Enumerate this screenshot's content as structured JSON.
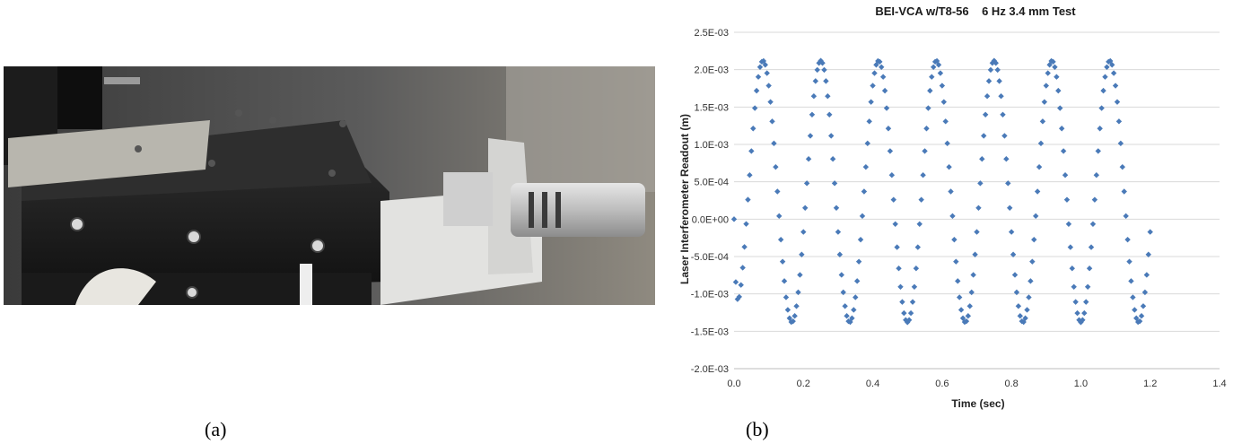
{
  "panels": {
    "a_label": "(a)",
    "b_label": "(b)"
  },
  "photo": {
    "icon": "photograph-of-voice-coil-actuator-test-rig"
  },
  "chart_data": {
    "type": "scatter",
    "title": "BEI-VCA w/T8-56    6 Hz 3.4 mm Test",
    "xlabel": "Time (sec)",
    "ylabel": "Laser Interferometer Readout (m)",
    "xlim": [
      0,
      1.4
    ],
    "ylim": [
      -0.002,
      0.0025
    ],
    "x_ticks": [
      0,
      0.2,
      0.4,
      0.6,
      0.8,
      1.0,
      1.2,
      1.4
    ],
    "x_tick_labels": [
      "0.0",
      "0.2",
      "0.4",
      "0.6",
      "0.8",
      "1.0",
      "1.2",
      "1.4"
    ],
    "y_ticks": [
      0.0025,
      0.002,
      0.0015,
      0.001,
      0.0005,
      0,
      -0.0005,
      -0.001,
      -0.0015,
      -0.002
    ],
    "y_tick_labels": [
      "2.5E-03",
      "2.0E-03",
      "1.5E-03",
      "1.0E-03",
      "5.0E-04",
      "0.0E+00",
      "-5.0E-04",
      "-1.0E-03",
      "-1.5E-03",
      "-2.0E-03"
    ],
    "grid": "horizontal",
    "marker": "diamond",
    "series": [
      {
        "color": "#4a7ab8",
        "x_start": 0,
        "x_end": 1.2,
        "x_step": 0.005,
        "frequency_hz": 6,
        "amplitude_m": 0.00175,
        "offset_m": 0.00037,
        "initial_value_m": 0.0
      }
    ]
  }
}
